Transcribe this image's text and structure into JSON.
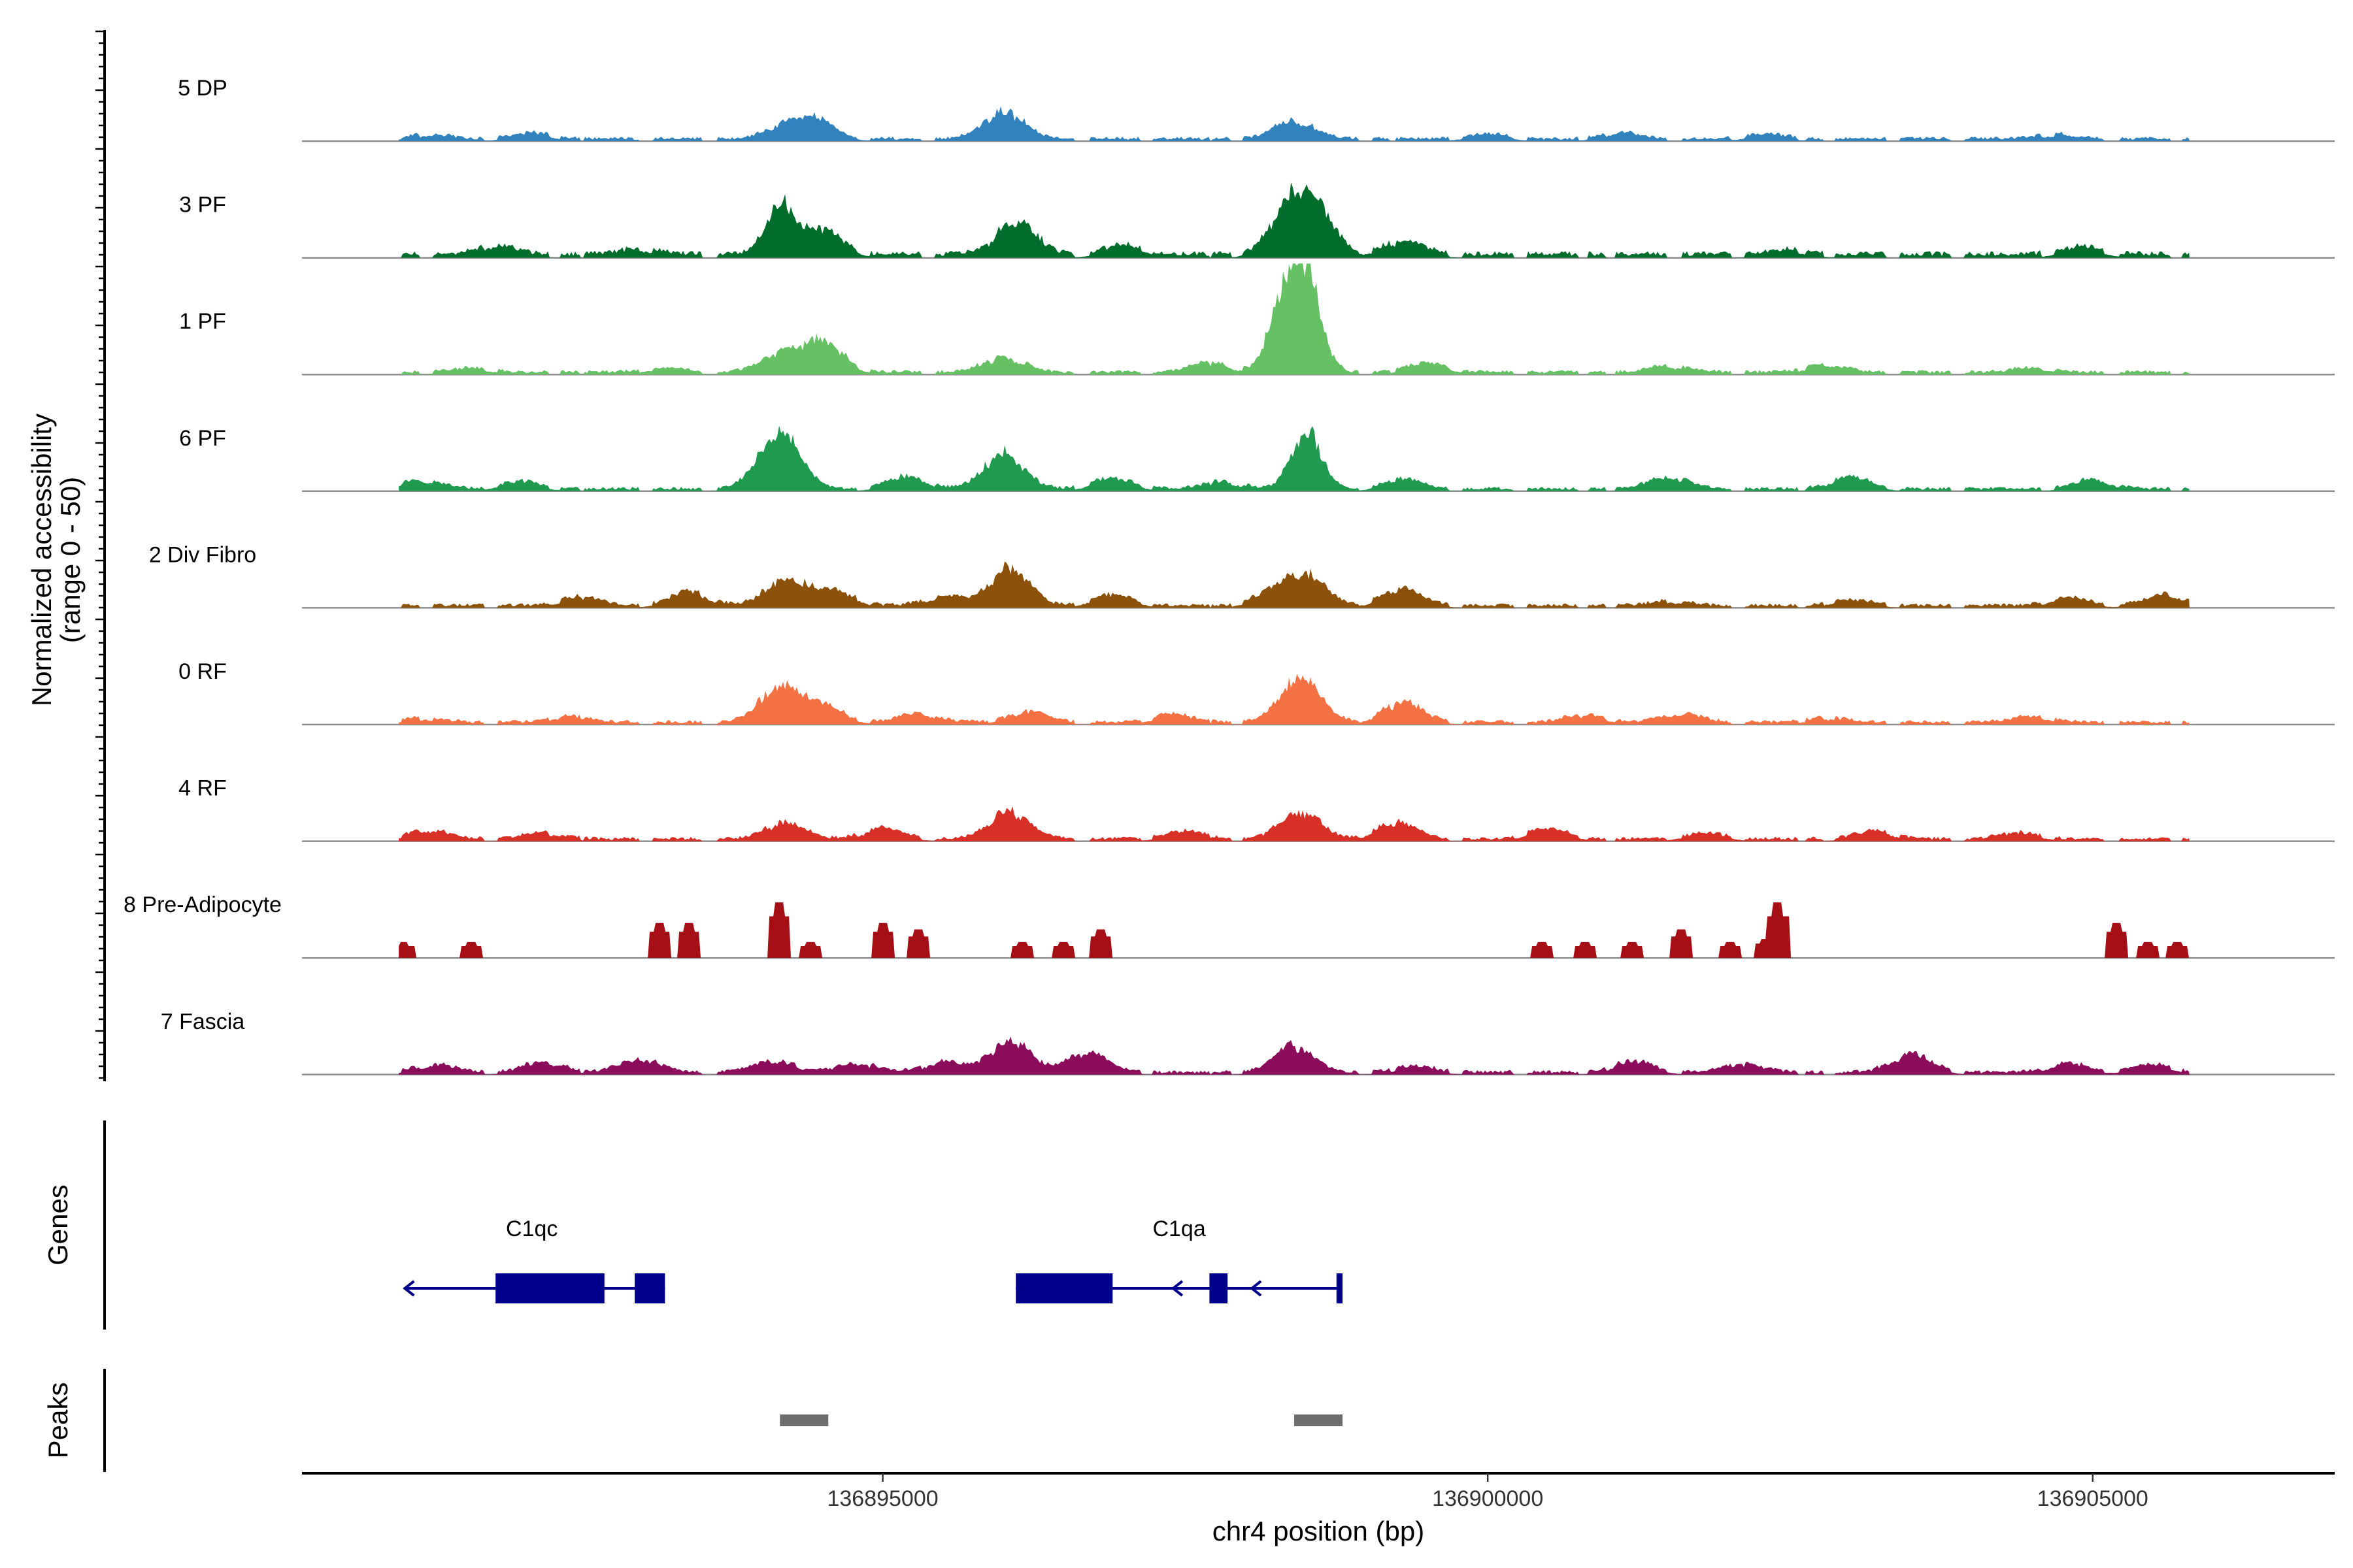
{
  "chart_data": {
    "type": "area",
    "title": "",
    "ylabel_line1": "Normalized accessibility",
    "ylabel_line2": "(range 0 - 50)",
    "xlabel": "chr4 position (bp)",
    "ylim": [
      0,
      50
    ],
    "xlim": [
      136890200,
      136907000
    ],
    "x_ticks": [
      {
        "value": 136895000,
        "label": "136895000"
      },
      {
        "value": 136900000,
        "label": "136900000"
      },
      {
        "value": 136905000,
        "label": "136905000"
      }
    ],
    "track_start": 136891000,
    "track_end": 136905800,
    "tracks": [
      {
        "name": "5 DP",
        "color": "#3182bd",
        "peaks": [
          [
            136891250,
            3
          ],
          [
            136892100,
            4
          ],
          [
            136894200,
            9
          ],
          [
            136894450,
            11
          ],
          [
            136896000,
            18
          ],
          [
            136898400,
            12
          ],
          [
            136900000,
            3
          ],
          [
            136901100,
            4
          ],
          [
            136902300,
            3
          ],
          [
            136904700,
            3
          ]
        ],
        "base": 2
      },
      {
        "name": "3 PF",
        "color": "#006d2c",
        "peaks": [
          [
            136891800,
            6
          ],
          [
            136893000,
            4
          ],
          [
            136894150,
            33
          ],
          [
            136894500,
            16
          ],
          [
            136896100,
            21
          ],
          [
            136897000,
            6
          ],
          [
            136898350,
            22
          ],
          [
            136898550,
            30
          ],
          [
            136899300,
            9
          ],
          [
            136902500,
            3
          ],
          [
            136904900,
            5
          ]
        ],
        "base": 3
      },
      {
        "name": "1 PF",
        "color": "#66c164",
        "peaks": [
          [
            136891600,
            3
          ],
          [
            136893200,
            3
          ],
          [
            136894150,
            12
          ],
          [
            136894500,
            20
          ],
          [
            136896000,
            10
          ],
          [
            136897700,
            6
          ],
          [
            136898500,
            60
          ],
          [
            136898300,
            40
          ],
          [
            136899500,
            6
          ],
          [
            136901500,
            4
          ],
          [
            136902800,
            5
          ],
          [
            136904500,
            3
          ]
        ],
        "base": 2
      },
      {
        "name": "6 PF",
        "color": "#1f9a4f",
        "peaks": [
          [
            136891200,
            6
          ],
          [
            136892000,
            5
          ],
          [
            136894200,
            18
          ],
          [
            136894100,
            20
          ],
          [
            136895200,
            8
          ],
          [
            136896000,
            23
          ],
          [
            136896900,
            7
          ],
          [
            136897800,
            5
          ],
          [
            136898500,
            38
          ],
          [
            136899300,
            6
          ],
          [
            136901500,
            8
          ],
          [
            136903000,
            8
          ],
          [
            136905000,
            6
          ]
        ],
        "base": 2
      },
      {
        "name": "2 Div Fibro",
        "color": "#8c510a",
        "peaks": [
          [
            136892500,
            6
          ],
          [
            136893400,
            9
          ],
          [
            136894200,
            18
          ],
          [
            136894600,
            9
          ],
          [
            136895500,
            6
          ],
          [
            136896050,
            24
          ],
          [
            136896900,
            7
          ],
          [
            136898250,
            9
          ],
          [
            136898500,
            18
          ],
          [
            136899300,
            11
          ],
          [
            136901500,
            3
          ],
          [
            136903000,
            4
          ],
          [
            136904800,
            5
          ],
          [
            136905600,
            7
          ]
        ],
        "base": 2
      },
      {
        "name": "0 RF",
        "color": "#f37143",
        "peaks": [
          [
            136891200,
            3
          ],
          [
            136892400,
            4
          ],
          [
            136894150,
            23
          ],
          [
            136894500,
            11
          ],
          [
            136895300,
            6
          ],
          [
            136896200,
            7
          ],
          [
            136897400,
            5
          ],
          [
            136898450,
            30
          ],
          [
            136899300,
            13
          ],
          [
            136900800,
            5
          ],
          [
            136901600,
            6
          ],
          [
            136902800,
            3
          ],
          [
            136904500,
            4
          ]
        ],
        "base": 2
      },
      {
        "name": "4 RF",
        "color": "#d73027",
        "peaks": [
          [
            136891250,
            6
          ],
          [
            136892200,
            4
          ],
          [
            136894200,
            11
          ],
          [
            136895000,
            7
          ],
          [
            136896050,
            18
          ],
          [
            136897500,
            5
          ],
          [
            136898450,
            18
          ],
          [
            136899250,
            11
          ],
          [
            136900500,
            7
          ],
          [
            136901800,
            4
          ],
          [
            136903200,
            5
          ],
          [
            136904400,
            4
          ]
        ],
        "base": 2
      },
      {
        "name": "8 Pre-Adipocyte",
        "color": "#a50f15",
        "peaks": [
          [
            136891040,
            10
          ],
          [
            136891600,
            10
          ],
          [
            136893150,
            22
          ],
          [
            136893400,
            22
          ],
          [
            136894150,
            35
          ],
          [
            136894400,
            10
          ],
          [
            136895000,
            22
          ],
          [
            136895300,
            18
          ],
          [
            136896150,
            10
          ],
          [
            136896500,
            10
          ],
          [
            136896800,
            18
          ],
          [
            136900450,
            10
          ],
          [
            136900800,
            10
          ],
          [
            136901200,
            10
          ],
          [
            136901600,
            18
          ],
          [
            136902000,
            10
          ],
          [
            136902300,
            12
          ],
          [
            136902400,
            35
          ],
          [
            136905200,
            22
          ],
          [
            136905450,
            10
          ],
          [
            136905700,
            10
          ]
        ],
        "base": 0
      },
      {
        "name": "7 Fascia",
        "color": "#8b0c5a",
        "peaks": [
          [
            136891300,
            5
          ],
          [
            136892200,
            7
          ],
          [
            136893000,
            9
          ],
          [
            136894100,
            8
          ],
          [
            136894800,
            6
          ],
          [
            136895500,
            7
          ],
          [
            136896050,
            21
          ],
          [
            136896700,
            13
          ],
          [
            136898400,
            17
          ],
          [
            136899400,
            4
          ],
          [
            136901200,
            7
          ],
          [
            136902100,
            6
          ],
          [
            136903500,
            12
          ],
          [
            136904800,
            6
          ],
          [
            136905500,
            5
          ]
        ],
        "base": 2
      }
    ],
    "genes_label": "Genes",
    "genes": [
      {
        "name": "C1qc",
        "strand": "-",
        "start": 136891050,
        "end": 136893200,
        "exons": [
          [
            136891800,
            136892700
          ],
          [
            136892950,
            136893200
          ]
        ]
      },
      {
        "name": "C1qa",
        "strand": "-",
        "start": 136896100,
        "end": 136898800,
        "exons": [
          [
            136896100,
            136896900
          ],
          [
            136897700,
            136897850
          ],
          [
            136898750,
            136898800
          ]
        ]
      }
    ],
    "peaks_label": "Peaks",
    "peak_regions": [
      [
        136894150,
        136894550
      ],
      [
        136898400,
        136898800
      ]
    ],
    "colors": {
      "gene": "#00008b",
      "peak": "#6e6e6e",
      "baseline": "#8c8c8c",
      "axis": "#000000"
    }
  }
}
